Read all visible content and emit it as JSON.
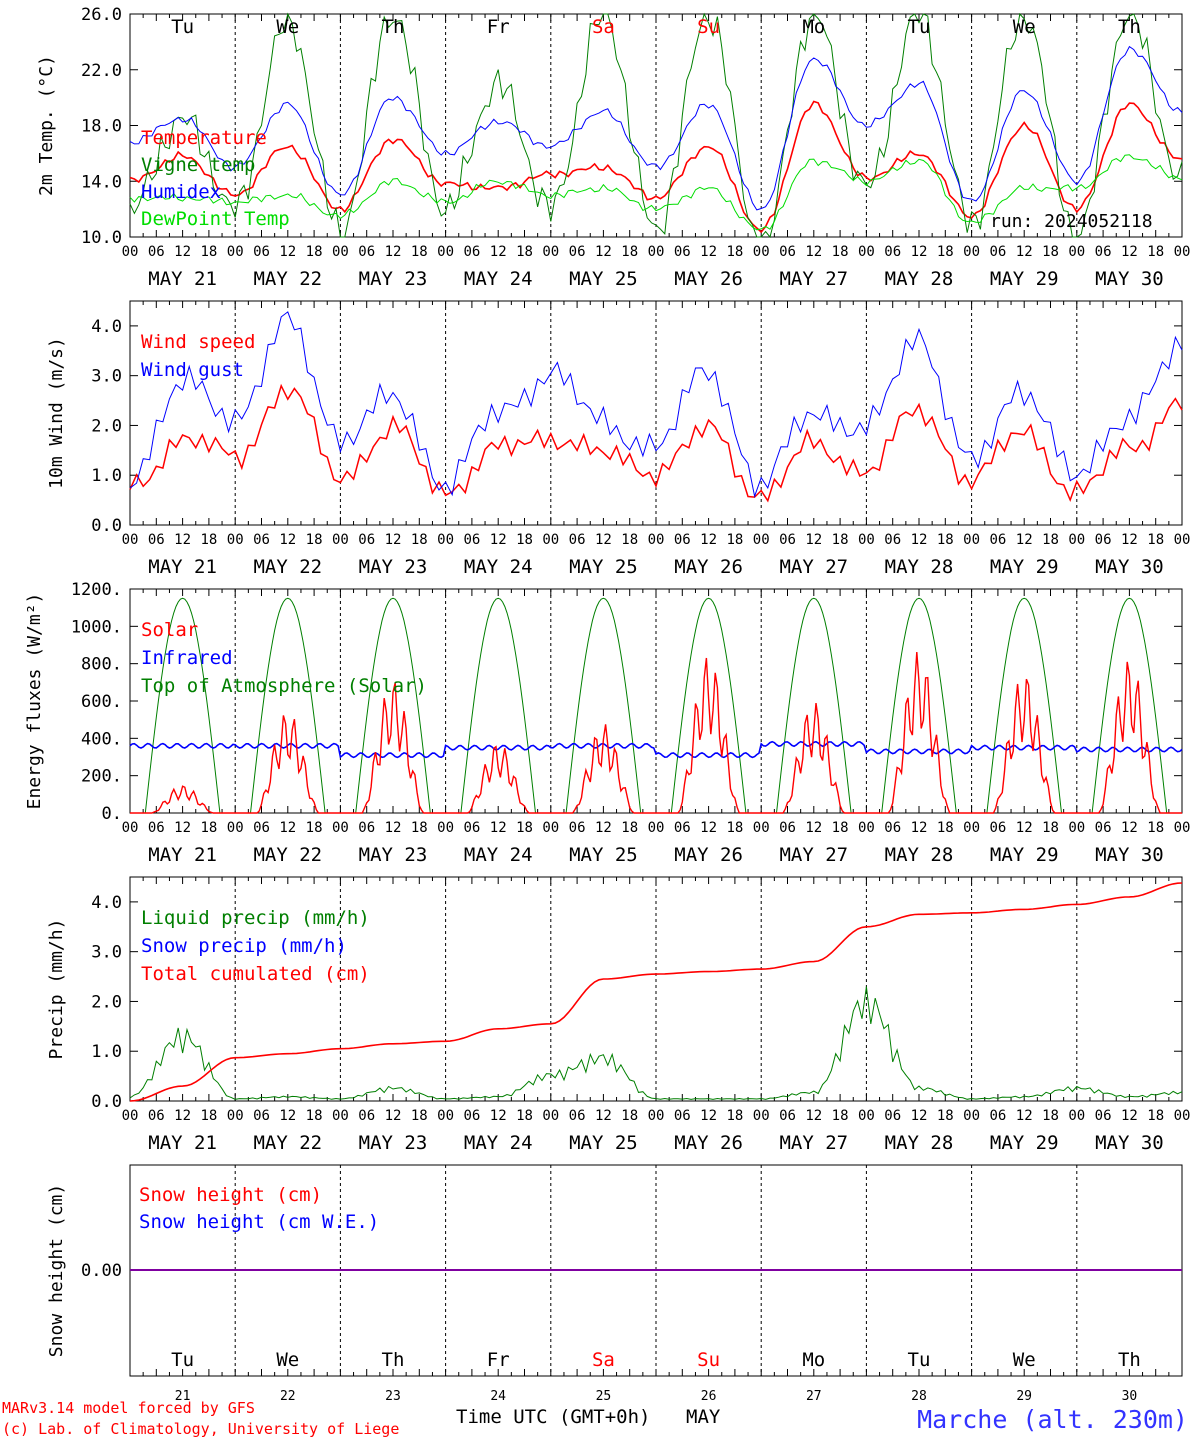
{
  "days": {
    "abbr": [
      "Tu",
      "We",
      "Th",
      "Fr",
      "Sa",
      "Su",
      "Mo",
      "Tu",
      "We",
      "Th"
    ],
    "dates": [
      "MAY 21",
      "MAY 22",
      "MAY 23",
      "MAY 24",
      "MAY 25",
      "MAY 26",
      "MAY 27",
      "MAY 28",
      "MAY 29",
      "MAY 30"
    ],
    "numbers": [
      "21",
      "22",
      "23",
      "24",
      "25",
      "26",
      "27",
      "28",
      "29",
      "30"
    ],
    "weekend_color": "#ff0000",
    "weekend_index": [
      4,
      5
    ]
  },
  "hour_ticks": [
    "00",
    "06",
    "12",
    "18"
  ],
  "colors": {
    "red": "#ff0000",
    "blue": "#0000ff",
    "green": "#007f00",
    "lightgreen": "#00dd00",
    "purple": "#7f00a0",
    "footer_red": "#ff0000",
    "station_blue": "#3333ff"
  },
  "footer": {
    "model_line": "MARv3.14 model forced by GFS",
    "copyright_line": "(c) Lab. of Climatology, University of Liege",
    "time_axis_label": "Time UTC (GMT+0h)",
    "month_label": "MAY",
    "station": "Marche (alt. 230m)"
  },
  "chart_data": [
    {
      "type": "line",
      "ylabel": "2m Temp. (°C)",
      "ylim": [
        10,
        26
      ],
      "yticks": [
        "10.0",
        "14.0",
        "18.0",
        "22.0",
        "26.0"
      ],
      "annotation": "run: 2024052118",
      "legend": [
        "Temperature",
        "Vigne temp",
        "Humidex",
        "DewPoint Temp"
      ],
      "x_hours": [
        0,
        12,
        24,
        36,
        48,
        60,
        72,
        84,
        96,
        108,
        120,
        132,
        144,
        156,
        168,
        180,
        192,
        204,
        216,
        228,
        240
      ],
      "series": [
        {
          "name": "Temperature",
          "color": "red",
          "values": [
            14.0,
            15.8,
            13.0,
            16.5,
            12.0,
            17.0,
            13.8,
            13.5,
            14.5,
            15.0,
            12.8,
            16.5,
            10.5,
            19.5,
            14.2,
            16.0,
            11.5,
            18.0,
            12.0,
            19.5,
            15.5
          ]
        },
        {
          "name": "Vigne temp",
          "color": "green",
          "values": [
            12.0,
            18.5,
            12.0,
            25.5,
            10.5,
            26.0,
            12.0,
            21.0,
            12.0,
            26.0,
            10.5,
            26.0,
            9.0,
            26.0,
            13.5,
            26.0,
            11.0,
            26.0,
            10.0,
            26.0,
            14.0
          ]
        },
        {
          "name": "Humidex",
          "color": "blue",
          "values": [
            16.8,
            18.5,
            15.0,
            19.5,
            13.0,
            20.0,
            16.0,
            18.3,
            16.5,
            19.0,
            15.0,
            19.5,
            12.0,
            22.8,
            18.0,
            21.0,
            12.5,
            20.5,
            14.0,
            23.5,
            19.0
          ]
        },
        {
          "name": "DewPoint Temp",
          "color": "lightgreen",
          "values": [
            12.8,
            12.8,
            12.5,
            13.0,
            11.5,
            14.0,
            12.5,
            14.0,
            13.0,
            13.5,
            12.0,
            13.5,
            10.5,
            15.5,
            14.0,
            15.5,
            11.0,
            13.5,
            13.5,
            15.8,
            14.2
          ]
        }
      ]
    },
    {
      "type": "line",
      "ylabel": "10m Wind (m/s)",
      "ylim": [
        0,
        4.5
      ],
      "yticks": [
        "0.0",
        "1.0",
        "2.0",
        "3.0",
        "4.0"
      ],
      "legend": [
        "Wind speed",
        "Wind gust"
      ],
      "x_hours": [
        0,
        12,
        24,
        36,
        48,
        60,
        72,
        84,
        96,
        108,
        120,
        132,
        144,
        156,
        168,
        180,
        192,
        204,
        216,
        228,
        240
      ],
      "series": [
        {
          "name": "Wind speed",
          "color": "red",
          "values": [
            0.8,
            1.7,
            1.4,
            2.7,
            1.0,
            1.9,
            0.7,
            1.5,
            1.8,
            1.4,
            1.1,
            1.9,
            0.6,
            1.6,
            1.1,
            2.3,
            0.9,
            1.9,
            0.6,
            1.6,
            2.4
          ]
        },
        {
          "name": "Wind gust",
          "color": "blue",
          "values": [
            1.0,
            2.8,
            2.2,
            4.0,
            1.8,
            2.5,
            0.9,
            2.2,
            3.1,
            2.0,
            1.6,
            3.1,
            0.8,
            2.3,
            1.9,
            3.8,
            1.2,
            2.8,
            0.9,
            2.3,
            3.5
          ]
        }
      ]
    },
    {
      "type": "line",
      "ylabel": "Energy fluxes (W/m²)",
      "ylim": [
        0,
        1200
      ],
      "yticks": [
        "0.",
        "200.",
        "400.",
        "600.",
        "800.",
        "1000.",
        "1200."
      ],
      "legend": [
        "Solar",
        "Infrared",
        "Top of Atmosphere (Solar)"
      ],
      "day_peaks": {
        "top_of_atmosphere": [
          1150,
          1150,
          1150,
          1150,
          1150,
          1150,
          1150,
          1150,
          1150,
          1150
        ],
        "solar": [
          150,
          550,
          720,
          380,
          480,
          850,
          600,
          870,
          760,
          830
        ],
        "infrared_mean": [
          360,
          360,
          310,
          350,
          360,
          310,
          370,
          330,
          350,
          340
        ]
      }
    },
    {
      "type": "line",
      "ylabel": "Precip (mm/h)",
      "ylim": [
        0,
        4.5
      ],
      "yticks": [
        "0.0",
        "1.0",
        "2.0",
        "3.0",
        "4.0"
      ],
      "legend": [
        "Liquid precip (mm/h)",
        "Snow precip (mm/h)",
        "Total cumulated (cm)"
      ],
      "x_hours": [
        0,
        12,
        24,
        36,
        48,
        60,
        72,
        84,
        96,
        108,
        120,
        132,
        144,
        156,
        168,
        180,
        192,
        204,
        216,
        228,
        240
      ],
      "series": [
        {
          "name": "Total cumulated (cm)",
          "color": "red",
          "values": [
            0.0,
            0.3,
            0.87,
            0.95,
            1.05,
            1.15,
            1.2,
            1.45,
            1.55,
            2.45,
            2.55,
            2.6,
            2.65,
            2.8,
            3.5,
            3.75,
            3.78,
            3.85,
            3.95,
            4.1,
            4.38
          ]
        },
        {
          "name": "Liquid precip (mm/h)",
          "color": "green",
          "values": [
            0.1,
            1.5,
            0.05,
            0.1,
            0.05,
            0.3,
            0.05,
            0.1,
            0.6,
            1.0,
            0.05,
            0.05,
            0.05,
            0.2,
            2.3,
            0.3,
            0.05,
            0.1,
            0.3,
            0.1,
            0.2
          ]
        }
      ]
    },
    {
      "type": "line",
      "ylabel": "Snow height (cm)",
      "yticks": [
        "0.00"
      ],
      "legend": [
        "Snow height (cm)",
        "Snow height (cm W.E.)"
      ],
      "value": 0.0
    }
  ]
}
